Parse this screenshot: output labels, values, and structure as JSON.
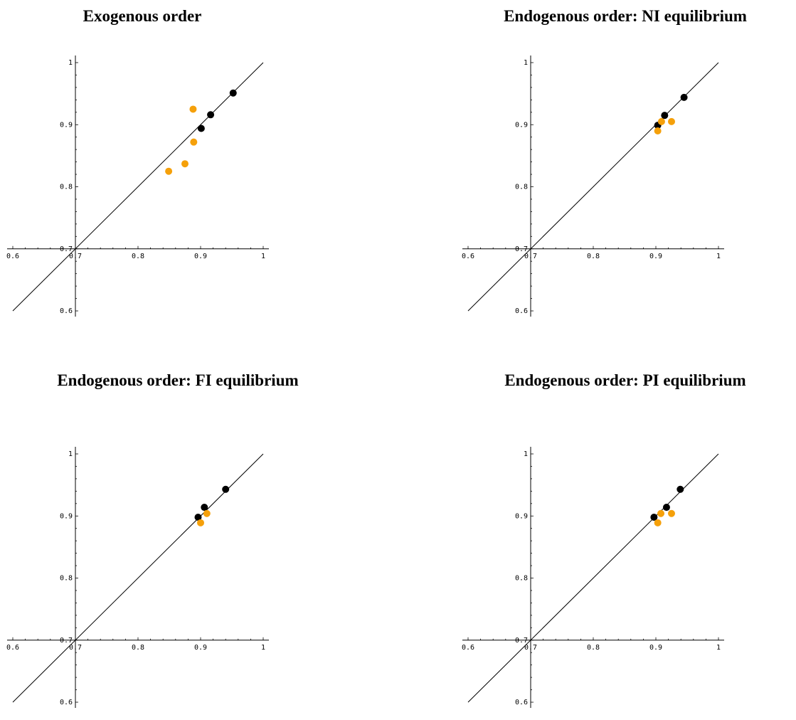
{
  "chart_data": [
    {
      "type": "scatter",
      "title": "Exogenous order",
      "xlim": [
        0.6,
        1.0
      ],
      "ylim": [
        0.6,
        1.0
      ],
      "axes_origin": [
        0.7,
        0.7
      ],
      "x_ticks": [
        "0.6",
        "0.7",
        "0.8",
        "0.9",
        "1"
      ],
      "y_ticks": [
        "0.6",
        "0.7",
        "0.8",
        "0.9",
        "1"
      ],
      "diagonal": [
        [
          0.6,
          0.6
        ],
        [
          1.0,
          1.0
        ]
      ],
      "series": [
        {
          "color": "#000000",
          "points": [
            [
              0.901,
              0.894
            ],
            [
              0.916,
              0.916
            ],
            [
              0.952,
              0.951
            ]
          ]
        },
        {
          "color": "#f5a00a",
          "points": [
            [
              0.888,
              0.925
            ],
            [
              0.889,
              0.872
            ],
            [
              0.875,
              0.837
            ],
            [
              0.849,
              0.825
            ]
          ]
        }
      ]
    },
    {
      "type": "scatter",
      "title": "Endogenous order: NI equilibrium",
      "xlim": [
        0.6,
        1.0
      ],
      "ylim": [
        0.6,
        1.0
      ],
      "axes_origin": [
        0.7,
        0.7
      ],
      "x_ticks": [
        "0.6",
        "0.7",
        "0.8",
        "0.9",
        "1"
      ],
      "y_ticks": [
        "0.6",
        "0.7",
        "0.8",
        "0.9",
        "1"
      ],
      "diagonal": [
        [
          0.6,
          0.6
        ],
        [
          1.0,
          1.0
        ]
      ],
      "series": [
        {
          "color": "#000000",
          "points": [
            [
              0.903,
              0.899
            ],
            [
              0.914,
              0.915
            ],
            [
              0.945,
              0.944
            ]
          ]
        },
        {
          "color": "#f5a00a",
          "points": [
            [
              0.903,
              0.89
            ],
            [
              0.909,
              0.905
            ],
            [
              0.925,
              0.905
            ]
          ]
        }
      ]
    },
    {
      "type": "scatter",
      "title": "Endogenous order: FI equilibrium",
      "xlim": [
        0.6,
        1.0
      ],
      "ylim": [
        0.6,
        1.0
      ],
      "axes_origin": [
        0.7,
        0.7
      ],
      "x_ticks": [
        "0.6",
        "0.7",
        "0.8",
        "0.9",
        "1"
      ],
      "y_ticks": [
        "0.6",
        "0.7",
        "0.8",
        "0.9",
        "1"
      ],
      "diagonal": [
        [
          0.6,
          0.6
        ],
        [
          1.0,
          1.0
        ]
      ],
      "series": [
        {
          "color": "#000000",
          "points": [
            [
              0.896,
              0.898
            ],
            [
              0.906,
              0.914
            ],
            [
              0.94,
              0.943
            ]
          ]
        },
        {
          "color": "#f5a00a",
          "points": [
            [
              0.9,
              0.889
            ],
            [
              0.91,
              0.904
            ]
          ]
        }
      ]
    },
    {
      "type": "scatter",
      "title": "Endogenous order: PI equilibrium",
      "xlim": [
        0.6,
        1.0
      ],
      "ylim": [
        0.6,
        1.0
      ],
      "axes_origin": [
        0.7,
        0.7
      ],
      "x_ticks": [
        "0.6",
        "0.7",
        "0.8",
        "0.9",
        "1"
      ],
      "y_ticks": [
        "0.6",
        "0.7",
        "0.8",
        "0.9",
        "1"
      ],
      "diagonal": [
        [
          0.6,
          0.6
        ],
        [
          1.0,
          1.0
        ]
      ],
      "series": [
        {
          "color": "#000000",
          "points": [
            [
              0.897,
              0.898
            ],
            [
              0.917,
              0.914
            ],
            [
              0.939,
              0.943
            ]
          ]
        },
        {
          "color": "#f5a00a",
          "points": [
            [
              0.903,
              0.889
            ],
            [
              0.908,
              0.904
            ],
            [
              0.925,
              0.904
            ]
          ]
        }
      ]
    }
  ]
}
